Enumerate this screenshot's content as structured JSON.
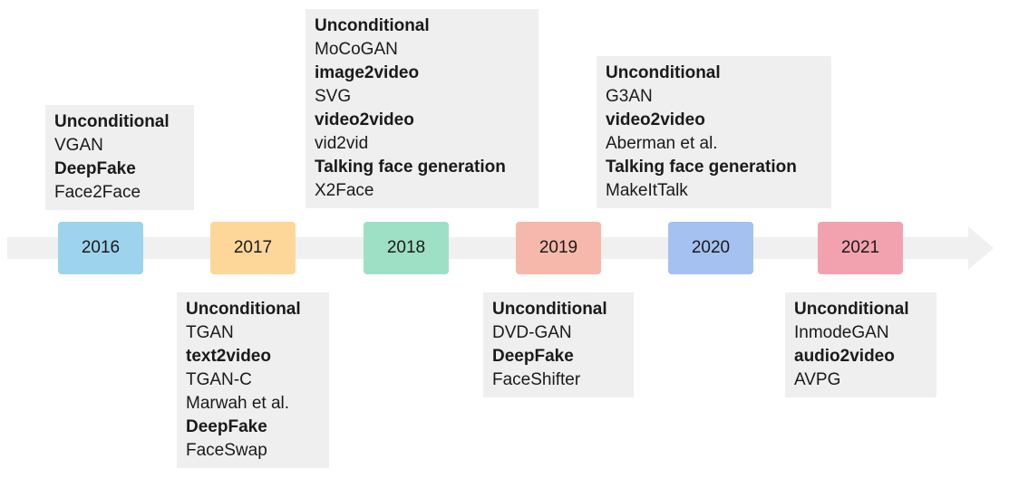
{
  "timeline": {
    "years": [
      {
        "label": "2016",
        "color": "#9dd3ed"
      },
      {
        "label": "2017",
        "color": "#fdd79a"
      },
      {
        "label": "2018",
        "color": "#9ee0c5"
      },
      {
        "label": "2019",
        "color": "#f6b8aa"
      },
      {
        "label": "2020",
        "color": "#a4c1f0"
      },
      {
        "label": "2021",
        "color": "#f2a2ae"
      }
    ],
    "groups": [
      {
        "year": "2016",
        "lines": [
          {
            "text": "Unconditional",
            "heading": true
          },
          {
            "text": "VGAN",
            "heading": false
          },
          {
            "text": "DeepFake",
            "heading": true
          },
          {
            "text": "Face2Face",
            "heading": false
          }
        ]
      },
      {
        "year": "2017",
        "lines": [
          {
            "text": "Unconditional",
            "heading": true
          },
          {
            "text": "TGAN",
            "heading": false
          },
          {
            "text": "text2video",
            "heading": true
          },
          {
            "text": "TGAN-C",
            "heading": false
          },
          {
            "text": "Marwah et al.",
            "heading": false
          },
          {
            "text": "DeepFake",
            "heading": true
          },
          {
            "text": "FaceSwap",
            "heading": false
          }
        ]
      },
      {
        "year": "2018",
        "lines": [
          {
            "text": "Unconditional",
            "heading": true
          },
          {
            "text": "MoCoGAN",
            "heading": false
          },
          {
            "text": "image2video",
            "heading": true
          },
          {
            "text": "SVG",
            "heading": false
          },
          {
            "text": "video2video",
            "heading": true
          },
          {
            "text": "vid2vid",
            "heading": false
          },
          {
            "text": "Talking face generation",
            "heading": true
          },
          {
            "text": "X2Face",
            "heading": false
          }
        ]
      },
      {
        "year": "2019",
        "lines": [
          {
            "text": "Unconditional",
            "heading": true
          },
          {
            "text": "DVD-GAN",
            "heading": false
          },
          {
            "text": "DeepFake",
            "heading": true
          },
          {
            "text": "FaceShifter",
            "heading": false
          }
        ]
      },
      {
        "year": "2020",
        "lines": [
          {
            "text": "Unconditional",
            "heading": true
          },
          {
            "text": "G3AN",
            "heading": false
          },
          {
            "text": "video2video",
            "heading": true
          },
          {
            "text": "Aberman et al.",
            "heading": false
          },
          {
            "text": "Talking face generation",
            "heading": true
          },
          {
            "text": "MakeItTalk",
            "heading": false
          }
        ]
      },
      {
        "year": "2021",
        "lines": [
          {
            "text": "Unconditional",
            "heading": true
          },
          {
            "text": "InmodeGAN",
            "heading": false
          },
          {
            "text": "audio2video",
            "heading": true
          },
          {
            "text": "AVPG",
            "heading": false
          }
        ]
      }
    ]
  }
}
